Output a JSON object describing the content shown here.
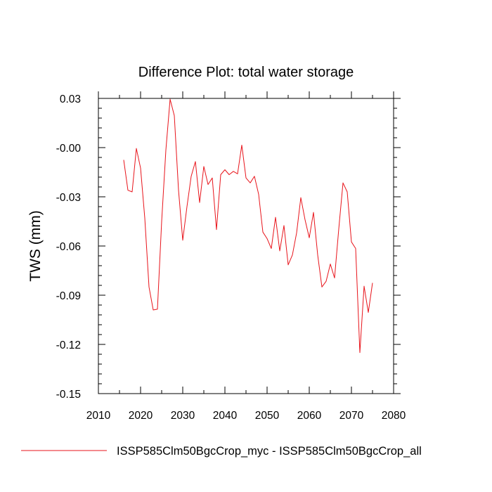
{
  "chart_data": {
    "type": "line",
    "title": "Difference Plot: total water storage",
    "ylabel": "TWS  (mm)",
    "xlim": [
      2010,
      2080
    ],
    "ylim": [
      -0.15,
      0.03
    ],
    "x_ticks": [
      2010,
      2020,
      2030,
      2040,
      2050,
      2060,
      2070,
      2080
    ],
    "y_ticks": [
      -0.15,
      -0.12,
      -0.09,
      -0.06,
      -0.03,
      0.0,
      0.03
    ],
    "y_tick_labels": [
      "-0.15",
      "-0.12",
      "-0.09",
      "-0.06",
      "-0.03",
      "-0.00",
      "0.03"
    ],
    "grid": false,
    "legend_position": "bottom",
    "series": [
      {
        "name": "ISSP585Clm50BgcCrop_myc - ISSP585Clm50BgcCrop_all",
        "color": "#e8141b",
        "x": [
          2016,
          2017,
          2018,
          2019,
          2020,
          2021,
          2022,
          2023,
          2024,
          2025,
          2026,
          2027,
          2028,
          2029,
          2030,
          2031,
          2032,
          2033,
          2034,
          2035,
          2036,
          2037,
          2038,
          2039,
          2040,
          2041,
          2042,
          2043,
          2044,
          2045,
          2046,
          2047,
          2048,
          2049,
          2050,
          2051,
          2052,
          2053,
          2054,
          2055,
          2056,
          2057,
          2058,
          2059,
          2060,
          2061,
          2062,
          2063,
          2064,
          2065,
          2066,
          2067,
          2068,
          2069,
          2070,
          2071,
          2072,
          2073,
          2074,
          2075
        ],
        "values": [
          -0.0075,
          -0.026,
          -0.027,
          -0.0005,
          -0.0125,
          -0.043,
          -0.085,
          -0.099,
          -0.0985,
          -0.045,
          -0.0015,
          0.0295,
          0.0195,
          -0.026,
          -0.0565,
          -0.036,
          -0.0175,
          -0.0085,
          -0.0335,
          -0.0115,
          -0.0225,
          -0.0185,
          -0.05,
          -0.0165,
          -0.0135,
          -0.0165,
          -0.0145,
          -0.016,
          0.0015,
          -0.0185,
          -0.0215,
          -0.0175,
          -0.0285,
          -0.0515,
          -0.0555,
          -0.0615,
          -0.0425,
          -0.063,
          -0.0475,
          -0.0715,
          -0.0655,
          -0.052,
          -0.0305,
          -0.044,
          -0.055,
          -0.0395,
          -0.0655,
          -0.085,
          -0.0815,
          -0.071,
          -0.0795,
          -0.0495,
          -0.0215,
          -0.027,
          -0.0575,
          -0.0615,
          -0.125,
          -0.0845,
          -0.1005,
          -0.0825
        ]
      }
    ]
  }
}
